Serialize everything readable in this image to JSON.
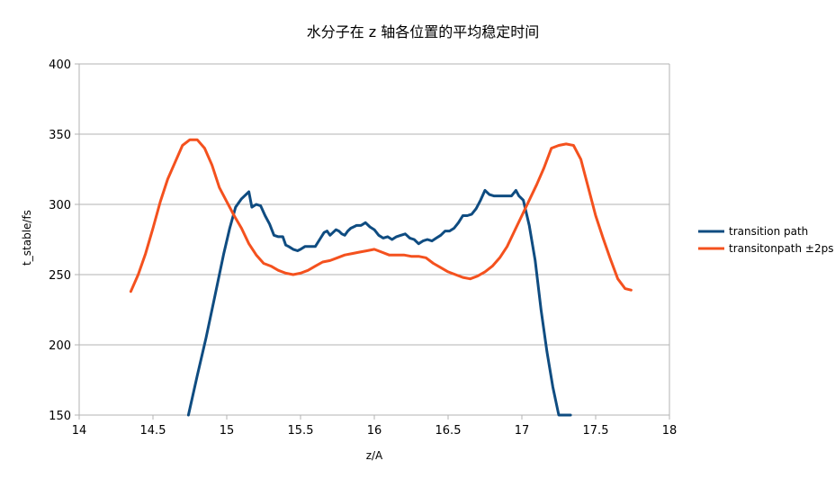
{
  "chart_data": {
    "type": "line",
    "title": "水分子在 z 轴各位置的平均稳定时间",
    "xlabel": "z/A",
    "ylabel": "t_stable/fs",
    "xlim": [
      14,
      18
    ],
    "ylim": [
      150,
      400
    ],
    "xticks": [
      14,
      14.5,
      15,
      15.5,
      16,
      16.5,
      17,
      17.5,
      18
    ],
    "xtick_labels": [
      "14",
      "14.5",
      "15",
      "15.5",
      "16",
      "16.5",
      "17",
      "17.5",
      "18"
    ],
    "yticks": [
      150,
      200,
      250,
      300,
      350,
      400
    ],
    "ytick_labels": [
      "150",
      "200",
      "250",
      "300",
      "350",
      "400"
    ],
    "grid": "horizontal",
    "legend_position": "right",
    "series": [
      {
        "name": "transition path",
        "color": "#0f4c81",
        "x": [
          14.74,
          14.8,
          14.86,
          14.92,
          14.98,
          15.02,
          15.06,
          15.1,
          15.15,
          15.17,
          15.2,
          15.23,
          15.26,
          15.29,
          15.32,
          15.35,
          15.38,
          15.4,
          15.42,
          15.45,
          15.48,
          15.5,
          15.53,
          15.56,
          15.6,
          15.63,
          15.66,
          15.68,
          15.7,
          15.72,
          15.74,
          15.76,
          15.78,
          15.8,
          15.82,
          15.84,
          15.86,
          15.88,
          15.91,
          15.94,
          15.97,
          16.0,
          16.03,
          16.06,
          16.09,
          16.12,
          16.15,
          16.18,
          16.21,
          16.24,
          16.27,
          16.3,
          16.33,
          16.36,
          16.39,
          16.42,
          16.45,
          16.48,
          16.51,
          16.54,
          16.57,
          16.6,
          16.63,
          16.66,
          16.69,
          16.72,
          16.75,
          16.78,
          16.81,
          16.84,
          16.87,
          16.9,
          16.93,
          16.96,
          16.98,
          17.01,
          17.05,
          17.09,
          17.13,
          17.17,
          17.21,
          17.25,
          17.29,
          17.33
        ],
        "y": [
          150,
          178,
          205,
          235,
          265,
          283,
          298,
          304,
          309,
          298,
          300,
          299,
          292,
          286,
          278,
          277,
          277,
          271,
          270,
          268,
          267,
          268,
          270,
          270,
          270,
          275,
          280,
          281,
          278,
          280,
          282,
          281,
          279,
          278,
          281,
          283,
          284,
          285,
          285,
          287,
          284,
          282,
          278,
          276,
          277,
          275,
          277,
          278,
          279,
          276,
          275,
          272,
          274,
          275,
          274,
          276,
          278,
          281,
          281,
          283,
          287,
          292,
          292,
          293,
          297,
          303,
          310,
          307,
          306,
          306,
          306,
          306,
          306,
          310,
          306,
          303,
          285,
          260,
          225,
          195,
          170,
          150,
          150,
          150
        ]
      },
      {
        "name": "transitonpath ±2ps",
        "color": "#f4511e",
        "x": [
          14.35,
          14.4,
          14.45,
          14.5,
          14.55,
          14.6,
          14.65,
          14.7,
          14.75,
          14.8,
          14.85,
          14.9,
          14.95,
          15.0,
          15.05,
          15.1,
          15.15,
          15.2,
          15.25,
          15.3,
          15.35,
          15.4,
          15.45,
          15.5,
          15.55,
          15.6,
          15.65,
          15.7,
          15.75,
          15.8,
          15.85,
          15.9,
          15.95,
          16.0,
          16.05,
          16.1,
          16.15,
          16.2,
          16.25,
          16.3,
          16.35,
          16.4,
          16.45,
          16.5,
          16.55,
          16.6,
          16.65,
          16.7,
          16.75,
          16.8,
          16.85,
          16.9,
          16.95,
          17.0,
          17.05,
          17.1,
          17.15,
          17.2,
          17.25,
          17.3,
          17.35,
          17.4,
          17.45,
          17.5,
          17.55,
          17.6,
          17.65,
          17.7,
          17.74
        ],
        "y": [
          238,
          250,
          265,
          283,
          302,
          318,
          330,
          342,
          346,
          346,
          340,
          328,
          312,
          302,
          292,
          283,
          272,
          264,
          258,
          256,
          253,
          251,
          250,
          251,
          253,
          256,
          259,
          260,
          262,
          264,
          265,
          266,
          267,
          268,
          266,
          264,
          264,
          264,
          263,
          263,
          262,
          258,
          255,
          252,
          250,
          248,
          247,
          249,
          252,
          256,
          262,
          270,
          281,
          292,
          303,
          314,
          326,
          340,
          342,
          343,
          342,
          332,
          312,
          292,
          276,
          261,
          247,
          240,
          239
        ]
      }
    ]
  }
}
